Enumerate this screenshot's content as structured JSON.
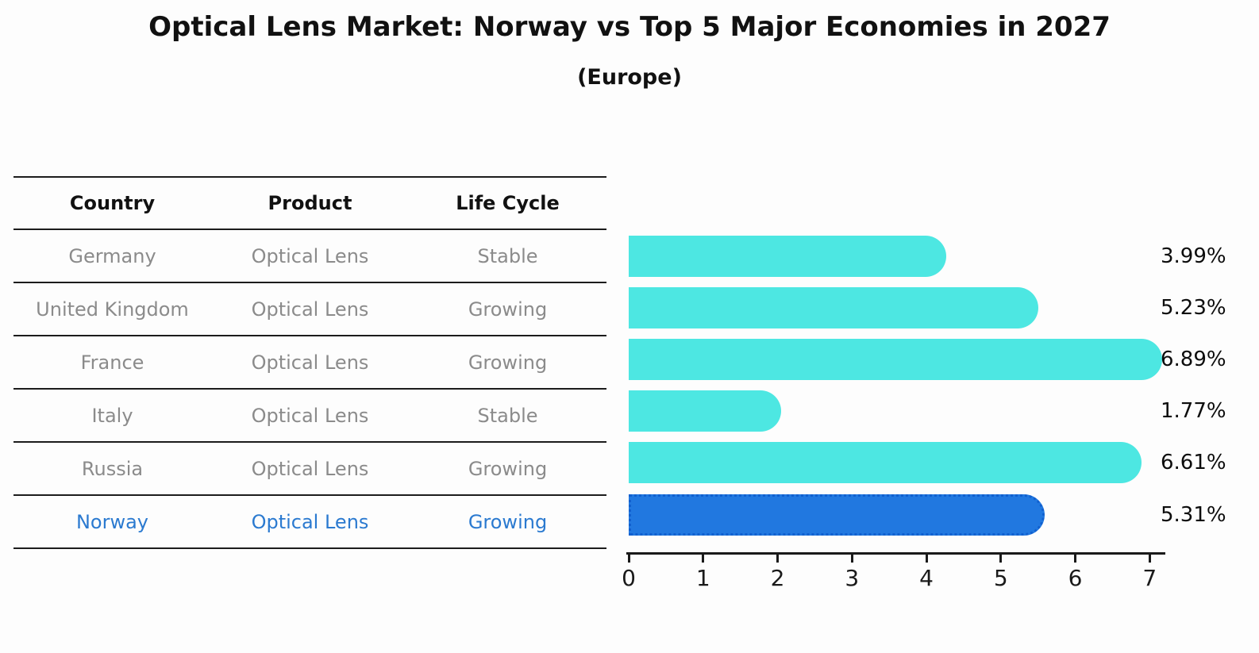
{
  "header": {
    "title": "Optical Lens Market: Norway vs Top 5 Major Economies in 2027",
    "subtitle": "(Europe)"
  },
  "table": {
    "columns": [
      "Country",
      "Product",
      "Life Cycle"
    ],
    "rows": [
      {
        "country": "Germany",
        "product": "Optical Lens",
        "life_cycle": "Stable",
        "highlighted": false
      },
      {
        "country": "United Kingdom",
        "product": "Optical Lens",
        "life_cycle": "Growing",
        "highlighted": false
      },
      {
        "country": "France",
        "product": "Optical Lens",
        "life_cycle": "Growing",
        "highlighted": false
      },
      {
        "country": "Italy",
        "product": "Optical Lens",
        "life_cycle": "Stable",
        "highlighted": false
      },
      {
        "country": "Russia",
        "product": "Optical Lens",
        "life_cycle": "Growing",
        "highlighted": false
      },
      {
        "country": "Norway",
        "product": "Optical Lens",
        "life_cycle": "Growing",
        "highlighted": true
      }
    ]
  },
  "chart_data": {
    "type": "bar",
    "orientation": "horizontal",
    "title": "Optical Lens Market: Norway vs Top 5 Major Economies in 2027",
    "subtitle": "(Europe)",
    "categories": [
      "Germany",
      "United Kingdom",
      "France",
      "Italy",
      "Russia",
      "Norway"
    ],
    "values": [
      3.99,
      5.23,
      6.89,
      1.77,
      6.61,
      5.31
    ],
    "value_labels": [
      "3.99%",
      "5.23%",
      "6.89%",
      "1.77%",
      "6.61%",
      "5.31%"
    ],
    "highlight_index": 5,
    "xlabel": "",
    "ylabel": "",
    "xlim": [
      0,
      7.2
    ],
    "x_ticks": [
      0,
      1,
      2,
      3,
      4,
      5,
      6,
      7
    ],
    "grid": false,
    "legend_position": "none",
    "colors": {
      "bar": "#4de7e2",
      "highlight_bar": "#2178e0",
      "highlight_text": "#2b7ad0",
      "axis": "#1a1a1a",
      "row_text": "#8b8b8b"
    }
  }
}
